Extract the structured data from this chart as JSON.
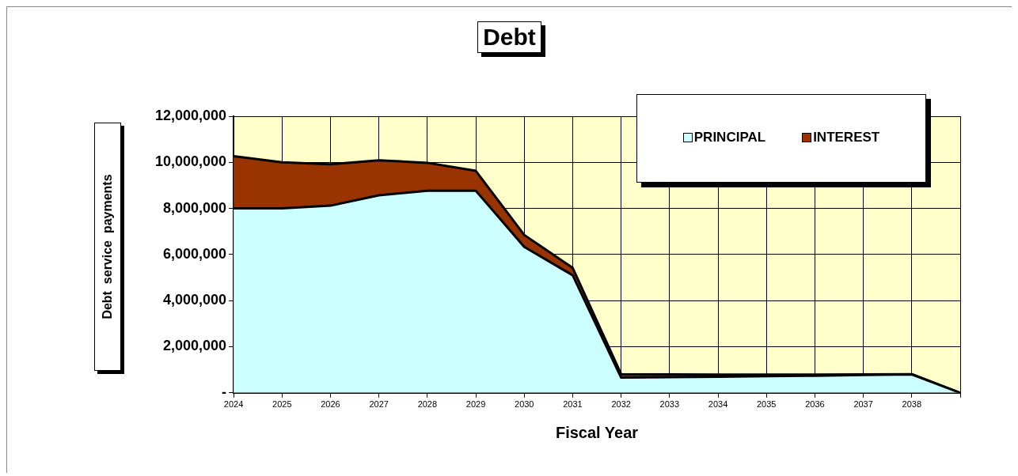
{
  "chart_data": {
    "type": "area",
    "title": "Debt",
    "xlabel": "Fiscal Year",
    "ylabel": "Debt  service  payments",
    "categories": [
      "2024",
      "2025",
      "2026",
      "2027",
      "2028",
      "2029",
      "2030",
      "2031",
      "2032",
      "2033",
      "2034",
      "2035",
      "2036",
      "2037",
      "2038",
      null
    ],
    "stacked": true,
    "series": [
      {
        "name": "PRINCIPAL",
        "color": "#ccffff",
        "values": [
          8000000,
          8000000,
          8120000,
          8570000,
          8770000,
          8770000,
          6330000,
          5100000,
          660000,
          680000,
          700000,
          720000,
          740000,
          770000,
          800000,
          0
        ]
      },
      {
        "name": "INTEREST",
        "color": "#993300",
        "values": [
          2270000,
          2000000,
          1800000,
          1520000,
          1210000,
          860000,
          520000,
          320000,
          150000,
          120000,
          90000,
          70000,
          50000,
          30000,
          10000,
          0
        ]
      }
    ],
    "ylim": [
      0,
      12000000
    ],
    "yticks": [
      {
        "value": 0,
        "label": "-"
      },
      {
        "value": 2000000,
        "label": "2,000,000"
      },
      {
        "value": 4000000,
        "label": "4,000,000"
      },
      {
        "value": 6000000,
        "label": "6,000,000"
      },
      {
        "value": 8000000,
        "label": "8,000,000"
      },
      {
        "value": 10000000,
        "label": "10,000,000"
      },
      {
        "value": 12000000,
        "label": "12,000,000"
      }
    ],
    "grid": true,
    "legend": "top right"
  }
}
